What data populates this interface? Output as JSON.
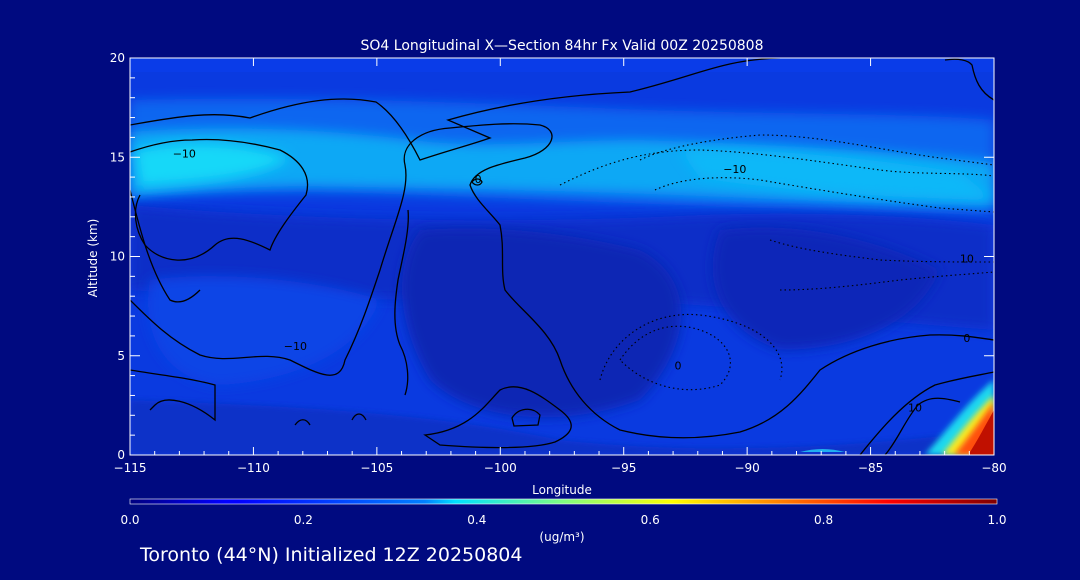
{
  "chart_data": {
    "type": "heatmap",
    "title": "SO4 Longitudinal X—Section 84hr  Fx Valid 00Z 20250808",
    "xlabel": "Longitude",
    "ylabel": "Altitude (km)",
    "xlim": [
      -115,
      -80
    ],
    "ylim": [
      0,
      20
    ],
    "x_ticks": [
      -115,
      -110,
      -105,
      -100,
      -95,
      -90,
      -85,
      -80
    ],
    "x_tick_labels": [
      "−115",
      "−110",
      "−105",
      "−100",
      "−95",
      "−90",
      "−85",
      "−80"
    ],
    "y_ticks": [
      0,
      5,
      10,
      15,
      20
    ],
    "y_tick_labels": [
      "0",
      "5",
      "10",
      "15",
      "20"
    ],
    "colorbar": {
      "min": 0.0,
      "max": 1.0,
      "ticks": [
        0.0,
        0.2,
        0.4,
        0.6,
        0.8,
        1.0
      ],
      "tick_labels": [
        "0.0",
        "0.2",
        "0.4",
        "0.6",
        "0.8",
        "1.0"
      ],
      "units": "(ug/m³)",
      "colormap": "jet"
    },
    "contour_labels": [
      {
        "text": "−10",
        "lon": -112.8,
        "alt": 15.2
      },
      {
        "text": "−10",
        "lon": -90.5,
        "alt": 14.4
      },
      {
        "text": "−10",
        "lon": -108.3,
        "alt": 5.5
      },
      {
        "text": "10",
        "lon": -81.1,
        "alt": 9.9
      },
      {
        "text": "0",
        "lon": -81.1,
        "alt": 5.9
      },
      {
        "text": "10",
        "lon": -83.2,
        "alt": 2.4
      },
      {
        "text": "0",
        "lon": -100.9,
        "alt": 13.9
      },
      {
        "text": "0",
        "lon": -92.8,
        "alt": 4.5
      }
    ],
    "notable_features": [
      {
        "description_value": "max ~1.0 ug/m3",
        "lon_range": [
          -83,
          -80
        ],
        "alt_range": [
          0,
          2.5
        ]
      },
      {
        "description_value": "~0.3 ug/m3 band",
        "lon_range": [
          -115,
          -80
        ],
        "alt_range": [
          13,
          16
        ]
      }
    ]
  },
  "footer": {
    "caption": "Toronto (44°N) Initialized 12Z 20250804"
  },
  "colors": {
    "background": "#000a80",
    "axes": "#ffffff",
    "contour": "#000000"
  }
}
